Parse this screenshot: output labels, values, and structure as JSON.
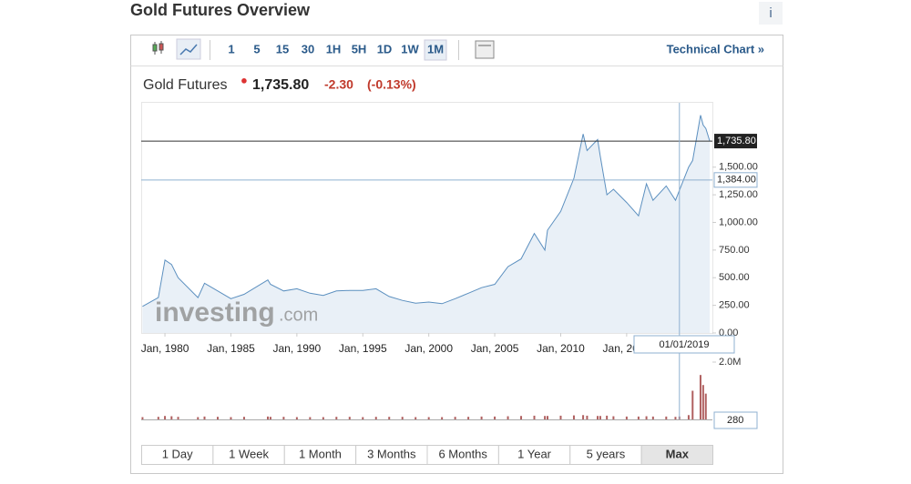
{
  "header": {
    "title": "Gold Futures Overview",
    "info": "i"
  },
  "toolbar": {
    "intervals": [
      "1",
      "5",
      "15",
      "30",
      "1H",
      "5H",
      "1D",
      "1W",
      "1M"
    ],
    "selected": "1M",
    "technical_chart": "Technical Chart »"
  },
  "quote": {
    "name": "Gold Futures",
    "price": "1,735.80",
    "change": "-2.30",
    "change_pct": "(-0.13%)"
  },
  "watermark": {
    "brand": "investing",
    "suffix": ".com"
  },
  "ranges": {
    "buttons": [
      "1 Day",
      "1 Week",
      "1 Month",
      "3 Months",
      "6 Months",
      "1 Year",
      "5 years",
      "Max"
    ],
    "selected": "Max"
  },
  "chart_data": {
    "type": "area",
    "x": [
      1978.3,
      1979.5,
      1980.0,
      1980.5,
      1981.0,
      1982.5,
      1983.0,
      1984.0,
      1985.0,
      1986.0,
      1987.8,
      1988.0,
      1989.0,
      1990.0,
      1991.0,
      1992.0,
      1993.0,
      1994.0,
      1995.0,
      1996.0,
      1997.0,
      1998.0,
      1999.0,
      2000.0,
      2001.0,
      2002.0,
      2003.0,
      2004.0,
      2005.0,
      2006.0,
      2007.0,
      2008.0,
      2008.8,
      2009.0,
      2010.0,
      2011.0,
      2011.7,
      2012.0,
      2012.8,
      2013.0,
      2013.5,
      2014.0,
      2015.0,
      2015.9,
      2016.5,
      2017.0,
      2018.0,
      2018.7,
      2019.0,
      2019.7,
      2020.0,
      2020.6,
      2020.8,
      2021.0,
      2021.3
    ],
    "series": [
      {
        "name": "Gold Futures",
        "color": "#5b8fbf",
        "values": [
          240,
          320,
          660,
          620,
          500,
          320,
          450,
          380,
          310,
          350,
          480,
          440,
          380,
          400,
          360,
          340,
          380,
          385,
          385,
          400,
          330,
          295,
          270,
          280,
          265,
          310,
          360,
          410,
          440,
          600,
          670,
          900,
          750,
          930,
          1100,
          1400,
          1800,
          1650,
          1750,
          1600,
          1250,
          1300,
          1180,
          1060,
          1350,
          1200,
          1330,
          1200,
          1290,
          1500,
          1560,
          1970,
          1880,
          1850,
          1735.8
        ]
      },
      {
        "name": "Volume",
        "color": "#b06060",
        "axis": "volume",
        "values": [
          80000,
          90000,
          120000,
          110000,
          90000,
          80000,
          100000,
          90000,
          80000,
          90000,
          100000,
          90000,
          90000,
          80000,
          80000,
          80000,
          90000,
          90000,
          80000,
          90000,
          90000,
          90000,
          80000,
          80000,
          80000,
          90000,
          90000,
          100000,
          100000,
          110000,
          120000,
          130000,
          120000,
          120000,
          130000,
          140000,
          150000,
          130000,
          120000,
          120000,
          130000,
          110000,
          100000,
          100000,
          110000,
          100000,
          100000,
          90000,
          100000,
          150000,
          1000000,
          1550000,
          1200000,
          900000,
          280
        ]
      }
    ],
    "xlim": [
      1978.2,
      2021.5
    ],
    "xticks": [
      {
        "value": 1980,
        "label": "Jan, 1980"
      },
      {
        "value": 1985,
        "label": "Jan, 1985"
      },
      {
        "value": 1990,
        "label": "Jan, 1990"
      },
      {
        "value": 1995,
        "label": "Jan, 1995"
      },
      {
        "value": 2000,
        "label": "Jan, 2000"
      },
      {
        "value": 2005,
        "label": "Jan, 2005"
      },
      {
        "value": 2010,
        "label": "Jan, 2010"
      },
      {
        "value": 2015,
        "label": "Jan, 2015"
      }
    ],
    "ylim": [
      0,
      2082
    ],
    "yticks": [
      {
        "value": 0,
        "label": "0.00"
      },
      {
        "value": 250,
        "label": "250.00"
      },
      {
        "value": 500,
        "label": "500.00"
      },
      {
        "value": 750,
        "label": "750.00"
      },
      {
        "value": 1000,
        "label": "1,000.00"
      },
      {
        "value": 1250,
        "label": "1,250.00"
      },
      {
        "value": 1500,
        "label": "1,500.00"
      }
    ],
    "volume_ylim": [
      0,
      2000000
    ],
    "volume_yticks": [
      {
        "value": 2000000,
        "label": "2.0M"
      }
    ],
    "current_price": {
      "value": 1735.8,
      "label": "1,735.80"
    },
    "current_volume": {
      "value": 280,
      "label": "280"
    },
    "crosshair": {
      "y": {
        "value": 1384,
        "label": "1,384.00"
      },
      "x": {
        "value": 2019.0,
        "label": "01/01/2019"
      }
    }
  }
}
